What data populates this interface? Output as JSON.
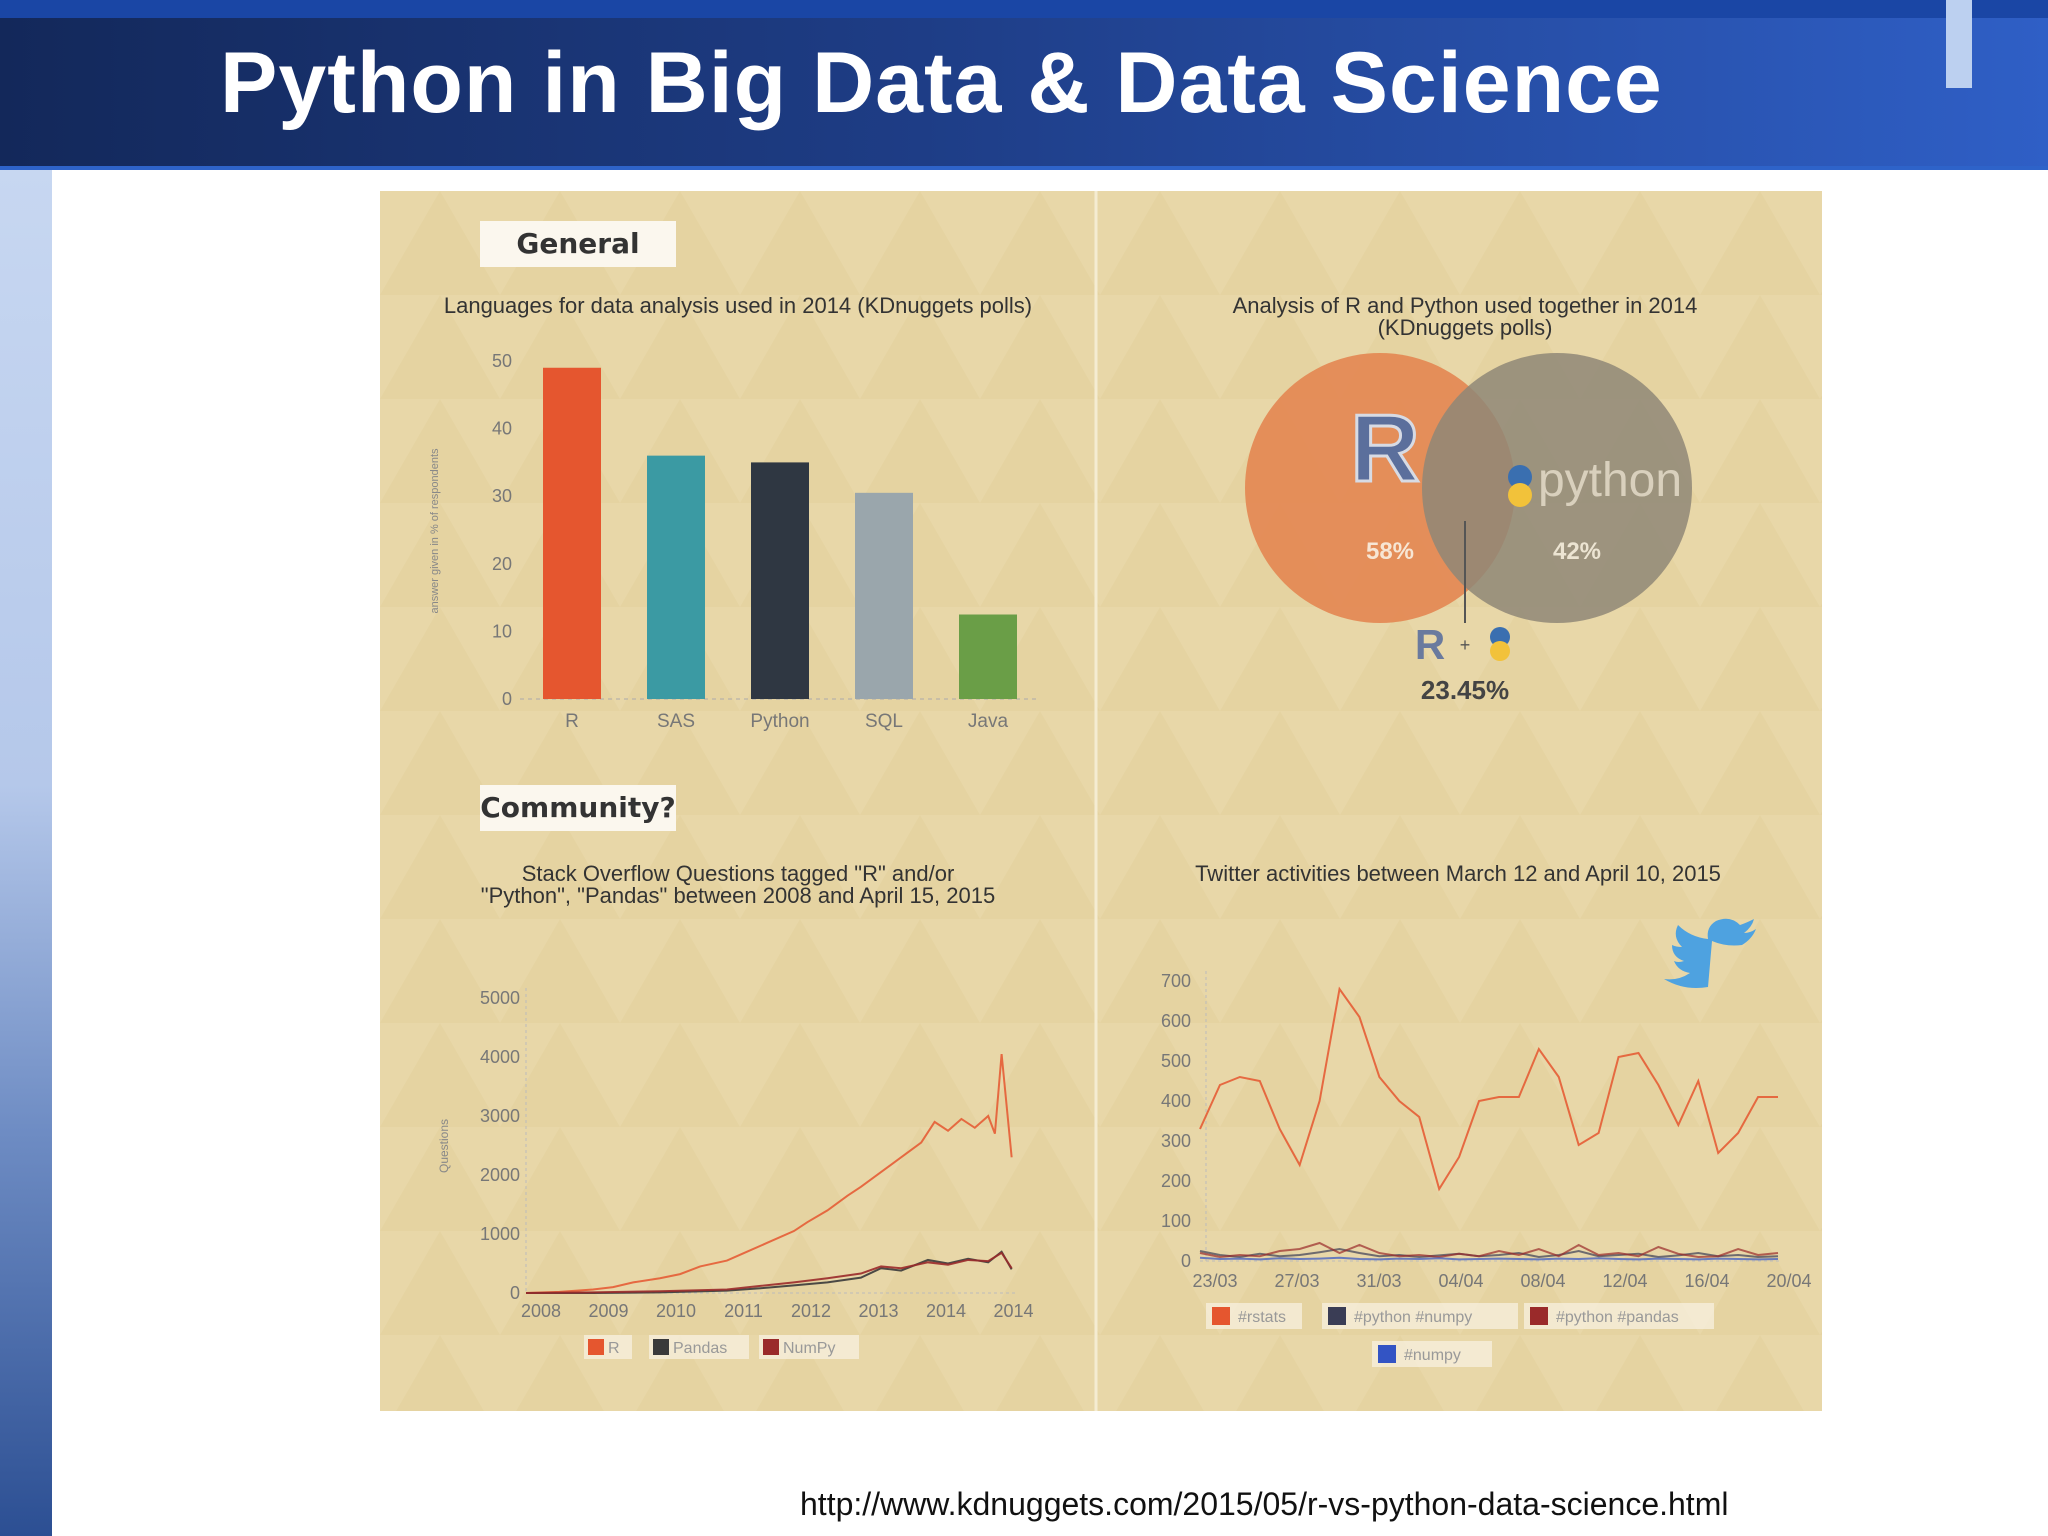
{
  "slide": {
    "title": "Python in Big Data & Data Science",
    "source_url": "http://www.kdnuggets.com/2015/05/r-vs-python-data-science.html"
  },
  "panels": {
    "general_label": "General",
    "community_label": "Community?"
  },
  "colors": {
    "R": "#e5562f",
    "SAS": "#3b9aa3",
    "Python": "#2f3742",
    "SQL": "#9aa6ac",
    "Java": "#6a9e47",
    "venn_r": "#e48a55",
    "venn_python": "#8f8777",
    "so_pandas": "#3a3a3a",
    "so_numpy": "#9a2a2a",
    "tw_numpy": "#3354c4",
    "twitter": "#4ea2e0"
  },
  "chart_data": [
    {
      "type": "bar",
      "title": "Languages for data analysis used in 2014 (KDnuggets polls)",
      "ylabel": "answer given in % of respondents",
      "categories": [
        "R",
        "SAS",
        "Python",
        "SQL",
        "Java"
      ],
      "values": [
        49,
        36,
        35,
        30.5,
        12.5
      ],
      "ylim": [
        0,
        50
      ],
      "yticks": [
        "0",
        "10",
        "20",
        "30",
        "40",
        "50"
      ]
    },
    {
      "type": "venn",
      "title": "Analysis of R and Python used together in 2014 (KDnuggets polls)",
      "sets": [
        {
          "name": "R",
          "value": "58%"
        },
        {
          "name": "python",
          "value": "42%"
        }
      ],
      "overlap": {
        "label": "+",
        "value": "23.45%"
      }
    },
    {
      "type": "line",
      "title": "Stack Overflow Questions tagged \"R\" and/or \"Python\", \"Pandas\" between 2008 and April 15, 2015",
      "ylabel": "Questions",
      "ylim": [
        0,
        5000
      ],
      "yticks": [
        "0",
        "1000",
        "2000",
        "3000",
        "4000",
        "5000"
      ],
      "xticks": [
        "2008",
        "2009",
        "2010",
        "2011",
        "2012",
        "2013",
        "2014",
        "2014"
      ],
      "xlim": [
        2008,
        2015.3
      ],
      "series": [
        {
          "name": "R",
          "x": [
            2008,
            2008.5,
            2009,
            2009.3,
            2009.6,
            2010,
            2010.3,
            2010.6,
            2011,
            2011.3,
            2011.6,
            2012,
            2012.2,
            2012.5,
            2012.8,
            2013,
            2013.3,
            2013.6,
            2013.9,
            2014.1,
            2014.3,
            2014.5,
            2014.7,
            2014.9,
            2015.0,
            2015.1,
            2015.25
          ],
          "values": [
            0,
            20,
            60,
            100,
            180,
            250,
            320,
            450,
            550,
            700,
            850,
            1050,
            1200,
            1400,
            1650,
            1800,
            2050,
            2300,
            2550,
            2900,
            2750,
            2950,
            2800,
            3000,
            2700,
            4050,
            2300
          ]
        },
        {
          "name": "Pandas",
          "x": [
            2008,
            2009,
            2010,
            2011,
            2011.5,
            2012,
            2012.5,
            2013,
            2013.3,
            2013.6,
            2014,
            2014.3,
            2014.6,
            2014.9,
            2015.1,
            2015.25
          ],
          "values": [
            0,
            0,
            10,
            40,
            80,
            130,
            180,
            260,
            420,
            380,
            560,
            500,
            580,
            520,
            700,
            400
          ]
        },
        {
          "name": "NumPy",
          "x": [
            2008,
            2009,
            2010,
            2011,
            2011.5,
            2012,
            2012.5,
            2013,
            2013.3,
            2013.6,
            2014,
            2014.3,
            2014.6,
            2014.9,
            2015.1,
            2015.25
          ],
          "values": [
            0,
            10,
            30,
            60,
            120,
            180,
            250,
            330,
            450,
            420,
            520,
            480,
            560,
            540,
            680,
            420
          ]
        }
      ]
    },
    {
      "type": "line",
      "title": "Twitter activities between March 12 and April 10, 2015",
      "ylim": [
        0,
        700
      ],
      "yticks": [
        "0",
        "100",
        "200",
        "300",
        "400",
        "500",
        "600",
        "700"
      ],
      "xticks": [
        "23/03",
        "27/03",
        "31/03",
        "04/04",
        "08/04",
        "12/04",
        "16/04",
        "20/04"
      ],
      "series": [
        {
          "name": "#rstats",
          "values": [
            330,
            440,
            460,
            450,
            330,
            240,
            400,
            680,
            610,
            460,
            400,
            360,
            180,
            260,
            400,
            410,
            410,
            530,
            460,
            290,
            320,
            510,
            520,
            440,
            340,
            450,
            270,
            320,
            410,
            410
          ]
        },
        {
          "name": "#python #numpy",
          "values": [
            25,
            15,
            10,
            18,
            12,
            15,
            22,
            30,
            20,
            12,
            15,
            10,
            14,
            18,
            12,
            15,
            20,
            10,
            15,
            25,
            12,
            15,
            18,
            10,
            14,
            20,
            12,
            15,
            10,
            12
          ]
        },
        {
          "name": "#python #pandas",
          "values": [
            20,
            10,
            15,
            12,
            25,
            30,
            45,
            20,
            40,
            20,
            12,
            15,
            10,
            18,
            12,
            25,
            15,
            30,
            12,
            40,
            15,
            20,
            12,
            35,
            18,
            10,
            12,
            30,
            15,
            20
          ]
        },
        {
          "name": "#numpy",
          "values": [
            8,
            5,
            6,
            4,
            7,
            5,
            6,
            8,
            5,
            4,
            6,
            5,
            7,
            4,
            5,
            6,
            5,
            4,
            6,
            5,
            7,
            5,
            4,
            6,
            5,
            4,
            6,
            5,
            4,
            5
          ]
        }
      ]
    }
  ]
}
